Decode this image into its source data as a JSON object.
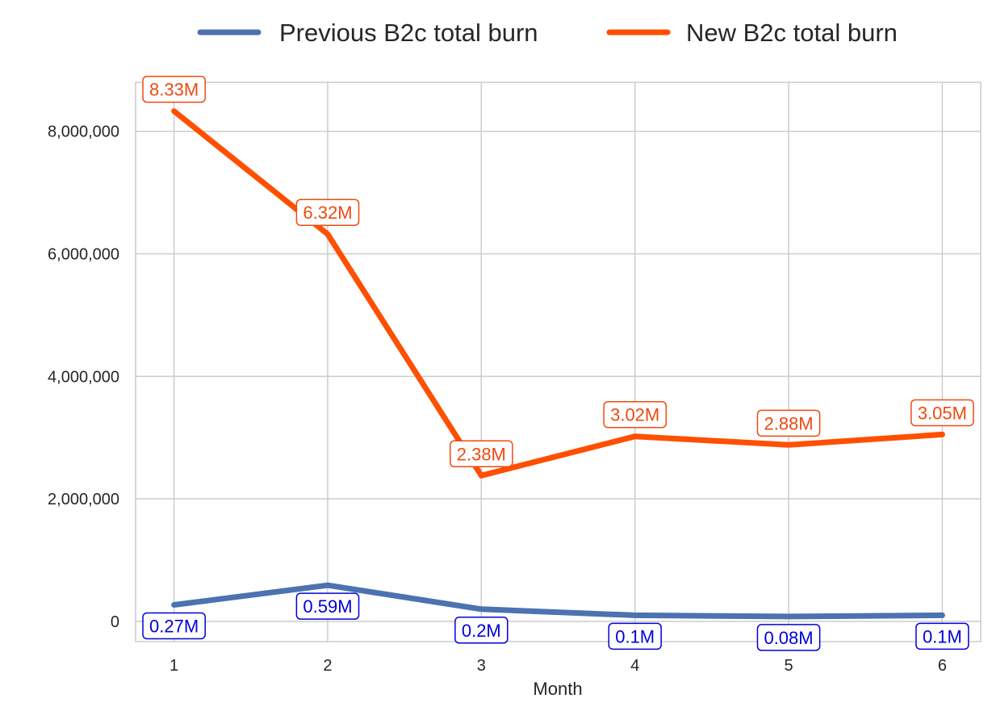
{
  "chart_data": {
    "type": "line",
    "title": "",
    "xlabel": "Month",
    "ylabel": "",
    "x": [
      1,
      2,
      3,
      4,
      5,
      6
    ],
    "xlim": [
      0.75,
      6.25
    ],
    "ylim": [
      -330000,
      8800000
    ],
    "yticks": [
      0,
      2000000,
      4000000,
      6000000,
      8000000
    ],
    "ytick_labels": [
      "0",
      "2,000,000",
      "4,000,000",
      "6,000,000",
      "8,000,000"
    ],
    "xtick_labels": [
      "1",
      "2",
      "3",
      "4",
      "5",
      "6"
    ],
    "grid": true,
    "legend_position": "top-center",
    "series": [
      {
        "name": "Previous B2c total burn",
        "color": "#4c72b0",
        "label_color": "#0000dd",
        "values": [
          270000,
          590000,
          200000,
          100000,
          80000,
          100000
        ],
        "labels": [
          "0.27M",
          "0.59M",
          "0.2M",
          "0.1M",
          "0.08M",
          "0.1M"
        ]
      },
      {
        "name": "New B2c total burn",
        "color": "#ff4f00",
        "label_color": "#ee4a10",
        "values": [
          8330000,
          6320000,
          2380000,
          3020000,
          2880000,
          3050000
        ],
        "labels": [
          "8.33M",
          "6.32M",
          "2.38M",
          "3.02M",
          "2.88M",
          "3.05M"
        ]
      }
    ]
  }
}
